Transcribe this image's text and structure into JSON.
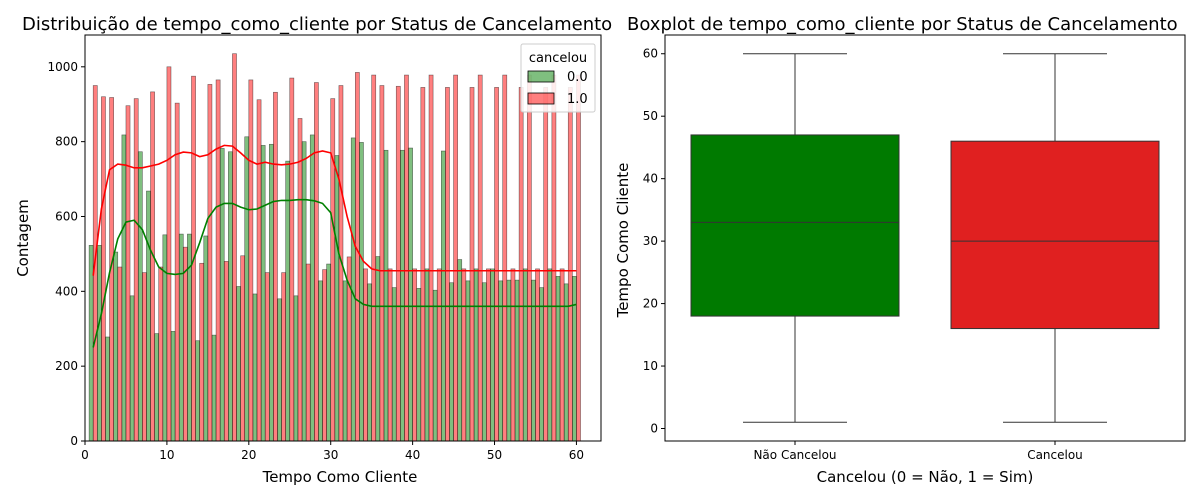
{
  "chart_data": [
    {
      "type": "bar",
      "subtype": "histogram_with_kde",
      "title": "Distribuição de tempo_como_cliente por Status de Cancelamento",
      "xlabel": "Tempo Como Cliente",
      "ylabel": "Contagem",
      "xlim": [
        0,
        63
      ],
      "ylim": [
        0,
        1085
      ],
      "x_ticks": [
        0,
        10,
        20,
        30,
        40,
        50,
        60
      ],
      "y_ticks": [
        0,
        200,
        400,
        600,
        800,
        1000
      ],
      "grid": false,
      "legend": {
        "title": "cancelou",
        "placement": "top-right",
        "entries": [
          "0.0",
          "1.0"
        ]
      },
      "colors": {
        "series_0": "#008000",
        "series_1": "#ff0000"
      },
      "x": [
        1,
        2,
        3,
        4,
        5,
        6,
        7,
        8,
        9,
        10,
        11,
        12,
        13,
        14,
        15,
        16,
        17,
        18,
        19,
        20,
        21,
        22,
        23,
        24,
        25,
        26,
        27,
        28,
        29,
        30,
        31,
        32,
        33,
        34,
        35,
        36,
        37,
        38,
        39,
        40,
        41,
        42,
        43,
        44,
        45,
        46,
        47,
        48,
        49,
        50,
        51,
        52,
        53,
        54,
        55,
        56,
        57,
        58,
        59,
        60
      ],
      "series": [
        {
          "name": "0.0",
          "values": [
            523,
            523,
            278,
            505,
            818,
            388,
            773,
            668,
            287,
            551,
            293,
            553,
            553,
            268,
            548,
            283,
            782,
            773,
            413,
            813,
            393,
            790,
            793,
            380,
            748,
            388,
            800,
            818,
            428,
            473,
            763,
            428,
            810,
            798,
            420,
            493,
            777,
            410,
            777,
            783,
            408,
            460,
            403,
            775,
            423,
            485,
            428,
            460,
            423,
            460,
            428,
            430,
            430,
            460,
            430,
            410,
            460,
            440,
            420,
            440
          ],
          "kde": [
            250,
            340,
            450,
            540,
            585,
            590,
            565,
            510,
            465,
            448,
            445,
            448,
            470,
            530,
            595,
            625,
            635,
            635,
            625,
            618,
            620,
            630,
            640,
            643,
            643,
            645,
            645,
            642,
            635,
            610,
            500,
            430,
            380,
            365,
            360,
            360,
            360,
            360,
            360,
            360,
            360,
            360,
            360,
            360,
            360,
            360,
            360,
            360,
            360,
            360,
            360,
            360,
            360,
            360,
            360,
            360,
            360,
            360,
            360,
            365
          ]
        },
        {
          "name": "1.0",
          "values": [
            950,
            920,
            918,
            465,
            896,
            915,
            450,
            933,
            465,
            1000,
            903,
            518,
            975,
            475,
            953,
            965,
            480,
            1035,
            495,
            965,
            912,
            450,
            932,
            450,
            970,
            862,
            473,
            958,
            458,
            915,
            950,
            492,
            985,
            460,
            978,
            950,
            460,
            948,
            978,
            460,
            945,
            978,
            460,
            945,
            978,
            460,
            945,
            978,
            460,
            945,
            978,
            460,
            945,
            978,
            460,
            945,
            978,
            460,
            945,
            978
          ],
          "kde": [
            442,
            620,
            725,
            740,
            737,
            730,
            730,
            735,
            740,
            750,
            765,
            772,
            770,
            760,
            765,
            780,
            790,
            788,
            770,
            750,
            740,
            745,
            740,
            738,
            740,
            745,
            755,
            770,
            775,
            770,
            700,
            600,
            520,
            480,
            460,
            455,
            455,
            455,
            455,
            455,
            455,
            455,
            455,
            455,
            455,
            455,
            455,
            455,
            455,
            455,
            455,
            455,
            455,
            455,
            455,
            455,
            455,
            455,
            455,
            455
          ]
        }
      ]
    },
    {
      "type": "box",
      "title": "Boxplot de tempo_como_cliente por Status de Cancelamento",
      "xlabel": "Cancelou (0 = Não, 1 = Sim)",
      "ylabel": "Tempo Como Cliente",
      "categories": [
        "Não Cancelou",
        "Cancelou"
      ],
      "ylim": [
        -2,
        63
      ],
      "y_ticks": [
        0,
        10,
        20,
        30,
        40,
        50,
        60
      ],
      "grid": false,
      "colors": {
        "Não Cancelou": "#007a00",
        "Cancelou": "#e02020"
      },
      "boxes": [
        {
          "category": "Não Cancelou",
          "min": 1,
          "q1": 18,
          "median": 33,
          "q3": 47,
          "max": 60
        },
        {
          "category": "Cancelou",
          "min": 1,
          "q1": 16,
          "median": 30,
          "q3": 46,
          "max": 60
        }
      ]
    }
  ]
}
